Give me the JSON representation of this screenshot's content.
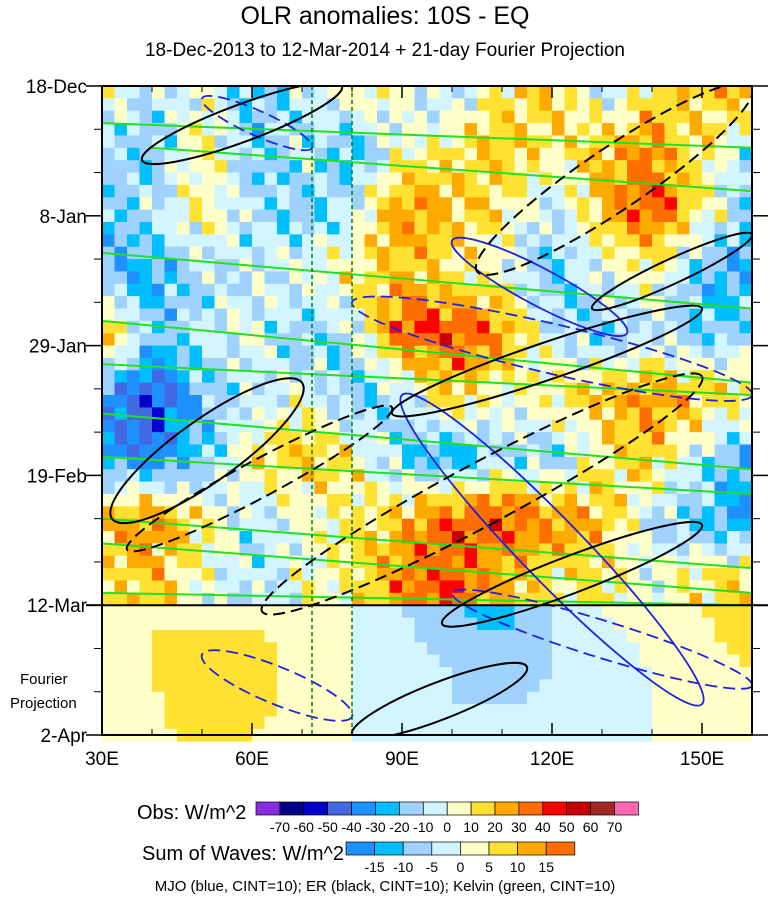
{
  "chart_data": {
    "type": "heatmap",
    "title": "OLR anomalies: 10S - EQ",
    "subtitle": "18-Dec-2013 to 12-Mar-2014 + 21-day Fourier Projection",
    "x_ticks": [
      {
        "lon": 30,
        "label": "30E"
      },
      {
        "lon": 60,
        "label": "60E"
      },
      {
        "lon": 90,
        "label": "90E"
      },
      {
        "lon": 120,
        "label": "120E"
      },
      {
        "lon": 150,
        "label": "150E"
      }
    ],
    "y_ticks": [
      {
        "day": 0,
        "label": "18-Dec"
      },
      {
        "day": 21,
        "label": "8-Jan"
      },
      {
        "day": 42,
        "label": "29-Jan"
      },
      {
        "day": 63,
        "label": "19-Feb"
      },
      {
        "day": 84,
        "label": "12-Mar"
      },
      {
        "day": 105,
        "label": "2-Apr"
      }
    ],
    "projection_label": [
      "Fourier",
      "Projection"
    ],
    "xlim": [
      30,
      160
    ],
    "ylim_days": [
      0,
      105
    ],
    "obs_end_day": 84,
    "dotted_lons": [
      72,
      80
    ],
    "grid_lons": [
      30,
      40,
      50,
      60,
      70,
      80,
      90,
      100,
      110,
      120,
      130,
      140,
      150,
      160
    ],
    "obs_days": [
      0,
      10,
      20,
      30,
      40,
      50,
      60,
      70,
      80
    ],
    "obs_values": [
      [
        10,
        -10,
        0,
        -20,
        -10,
        10,
        0,
        -10,
        10,
        20,
        -10,
        10,
        20,
        30
      ],
      [
        -10,
        -20,
        10,
        -20,
        -10,
        -20,
        0,
        10,
        20,
        10,
        20,
        30,
        10,
        -10
      ],
      [
        -20,
        -10,
        10,
        -10,
        -20,
        -10,
        30,
        20,
        10,
        -10,
        20,
        40,
        10,
        -20
      ],
      [
        -20,
        -30,
        -10,
        -10,
        0,
        10,
        20,
        10,
        0,
        -20,
        0,
        10,
        -20,
        -30
      ],
      [
        30,
        -20,
        -10,
        0,
        -20,
        -10,
        40,
        40,
        30,
        -10,
        -20,
        -10,
        -20,
        -10
      ],
      [
        -30,
        -50,
        -20,
        -10,
        0,
        -20,
        -10,
        20,
        0,
        10,
        20,
        30,
        20,
        10
      ],
      [
        -30,
        -40,
        -20,
        10,
        20,
        10,
        -20,
        -30,
        -10,
        -20,
        10,
        20,
        -10,
        -30
      ],
      [
        20,
        30,
        10,
        -10,
        0,
        10,
        20,
        40,
        40,
        30,
        20,
        -10,
        -20,
        -30
      ],
      [
        10,
        20,
        0,
        -10,
        0,
        10,
        30,
        40,
        20,
        10,
        10,
        0,
        10,
        20
      ]
    ],
    "proj_days": [
      84,
      95,
      105
    ],
    "proj_values": [
      [
        3,
        5,
        3,
        3,
        5,
        0,
        -5,
        -10,
        -12,
        -5,
        0,
        3,
        5,
        8
      ],
      [
        0,
        5,
        8,
        8,
        3,
        0,
        -3,
        -5,
        -8,
        -5,
        -3,
        0,
        3,
        5
      ],
      [
        0,
        3,
        8,
        5,
        3,
        0,
        -3,
        -5,
        -3,
        -3,
        -3,
        0,
        0,
        3
      ]
    ],
    "obs_colorbar": {
      "label": "Obs: W/m^2",
      "levels": [
        "-70",
        "-60",
        "-50",
        "-40",
        "-30",
        "-20",
        "-10",
        "0",
        "10",
        "20",
        "30",
        "40",
        "50",
        "60",
        "70"
      ],
      "colors": [
        "#8a2be2",
        "#00008b",
        "#0000cd",
        "#4169e1",
        "#1e90ff",
        "#00bfff",
        "#a0d2ff",
        "#d2f5ff",
        "#ffffc8",
        "#ffe132",
        "#ffaa00",
        "#ff6e00",
        "#ff0000",
        "#c80000",
        "#a02828",
        "#ff69b4"
      ]
    },
    "waves_colorbar": {
      "label": "Sum of Waves: W/m^2",
      "levels": [
        "-15",
        "-10",
        "-5",
        "0",
        "5",
        "10",
        "15"
      ],
      "colors": [
        "#1e90ff",
        "#00bfff",
        "#a0d2ff",
        "#d2f5ff",
        "#ffffc8",
        "#ffe132",
        "#ffaa00",
        "#ff6e00"
      ]
    },
    "contour_legend": "MJO (blue, CINT=10); ER (black, CINT=10); Kelvin (green, CINT=10)",
    "kelvin_lines": [
      [
        30,
        6,
        160,
        10
      ],
      [
        40,
        10,
        160,
        17
      ],
      [
        30,
        27,
        160,
        36
      ],
      [
        30,
        38,
        160,
        48
      ],
      [
        30,
        45,
        160,
        50
      ],
      [
        30,
        53,
        160,
        62
      ],
      [
        30,
        60,
        160,
        66
      ],
      [
        30,
        70,
        160,
        78
      ],
      [
        30,
        74,
        160,
        82
      ],
      [
        30,
        82,
        160,
        84
      ]
    ],
    "er_ellipses": [
      {
        "from": [
          38,
          12
        ],
        "to": [
          78,
          0
        ],
        "w": 3,
        "dash": false
      },
      {
        "from": [
          105,
          30
        ],
        "to": [
          160,
          0
        ],
        "w": 5,
        "dash": true
      },
      {
        "from": [
          88,
          53
        ],
        "to": [
          150,
          36
        ],
        "w": 3,
        "dash": false
      },
      {
        "from": [
          128,
          36
        ],
        "to": [
          160,
          24
        ],
        "w": 2,
        "dash": false
      },
      {
        "from": [
          32,
          70
        ],
        "to": [
          70,
          48
        ],
        "w": 5,
        "dash": false
      },
      {
        "from": [
          35,
          75
        ],
        "to": [
          88,
          52
        ],
        "w": 3,
        "dash": true
      },
      {
        "from": [
          62,
          85
        ],
        "to": [
          150,
          47
        ],
        "w": 5,
        "dash": true
      },
      {
        "from": [
          98,
          87
        ],
        "to": [
          150,
          71
        ],
        "w": 3,
        "dash": false
      },
      {
        "from": [
          80,
          105
        ],
        "to": [
          115,
          94
        ],
        "w": 3,
        "dash": false
      }
    ],
    "mjo_ellipses": [
      {
        "from": [
          90,
          50
        ],
        "to": [
          150,
          100
        ],
        "w": 5,
        "dash": false
      },
      {
        "from": [
          80,
          35
        ],
        "to": [
          160,
          50
        ],
        "w": 4,
        "dash": true
      },
      {
        "from": [
          100,
          25
        ],
        "to": [
          135,
          40
        ],
        "w": 3,
        "dash": false
      },
      {
        "from": [
          50,
          2
        ],
        "to": [
          72,
          10
        ],
        "w": 2,
        "dash": true
      },
      {
        "from": [
          50,
          92
        ],
        "to": [
          80,
          102
        ],
        "w": 3,
        "dash": true
      },
      {
        "from": [
          100,
          82
        ],
        "to": [
          160,
          97
        ],
        "w": 3,
        "dash": true
      }
    ]
  }
}
